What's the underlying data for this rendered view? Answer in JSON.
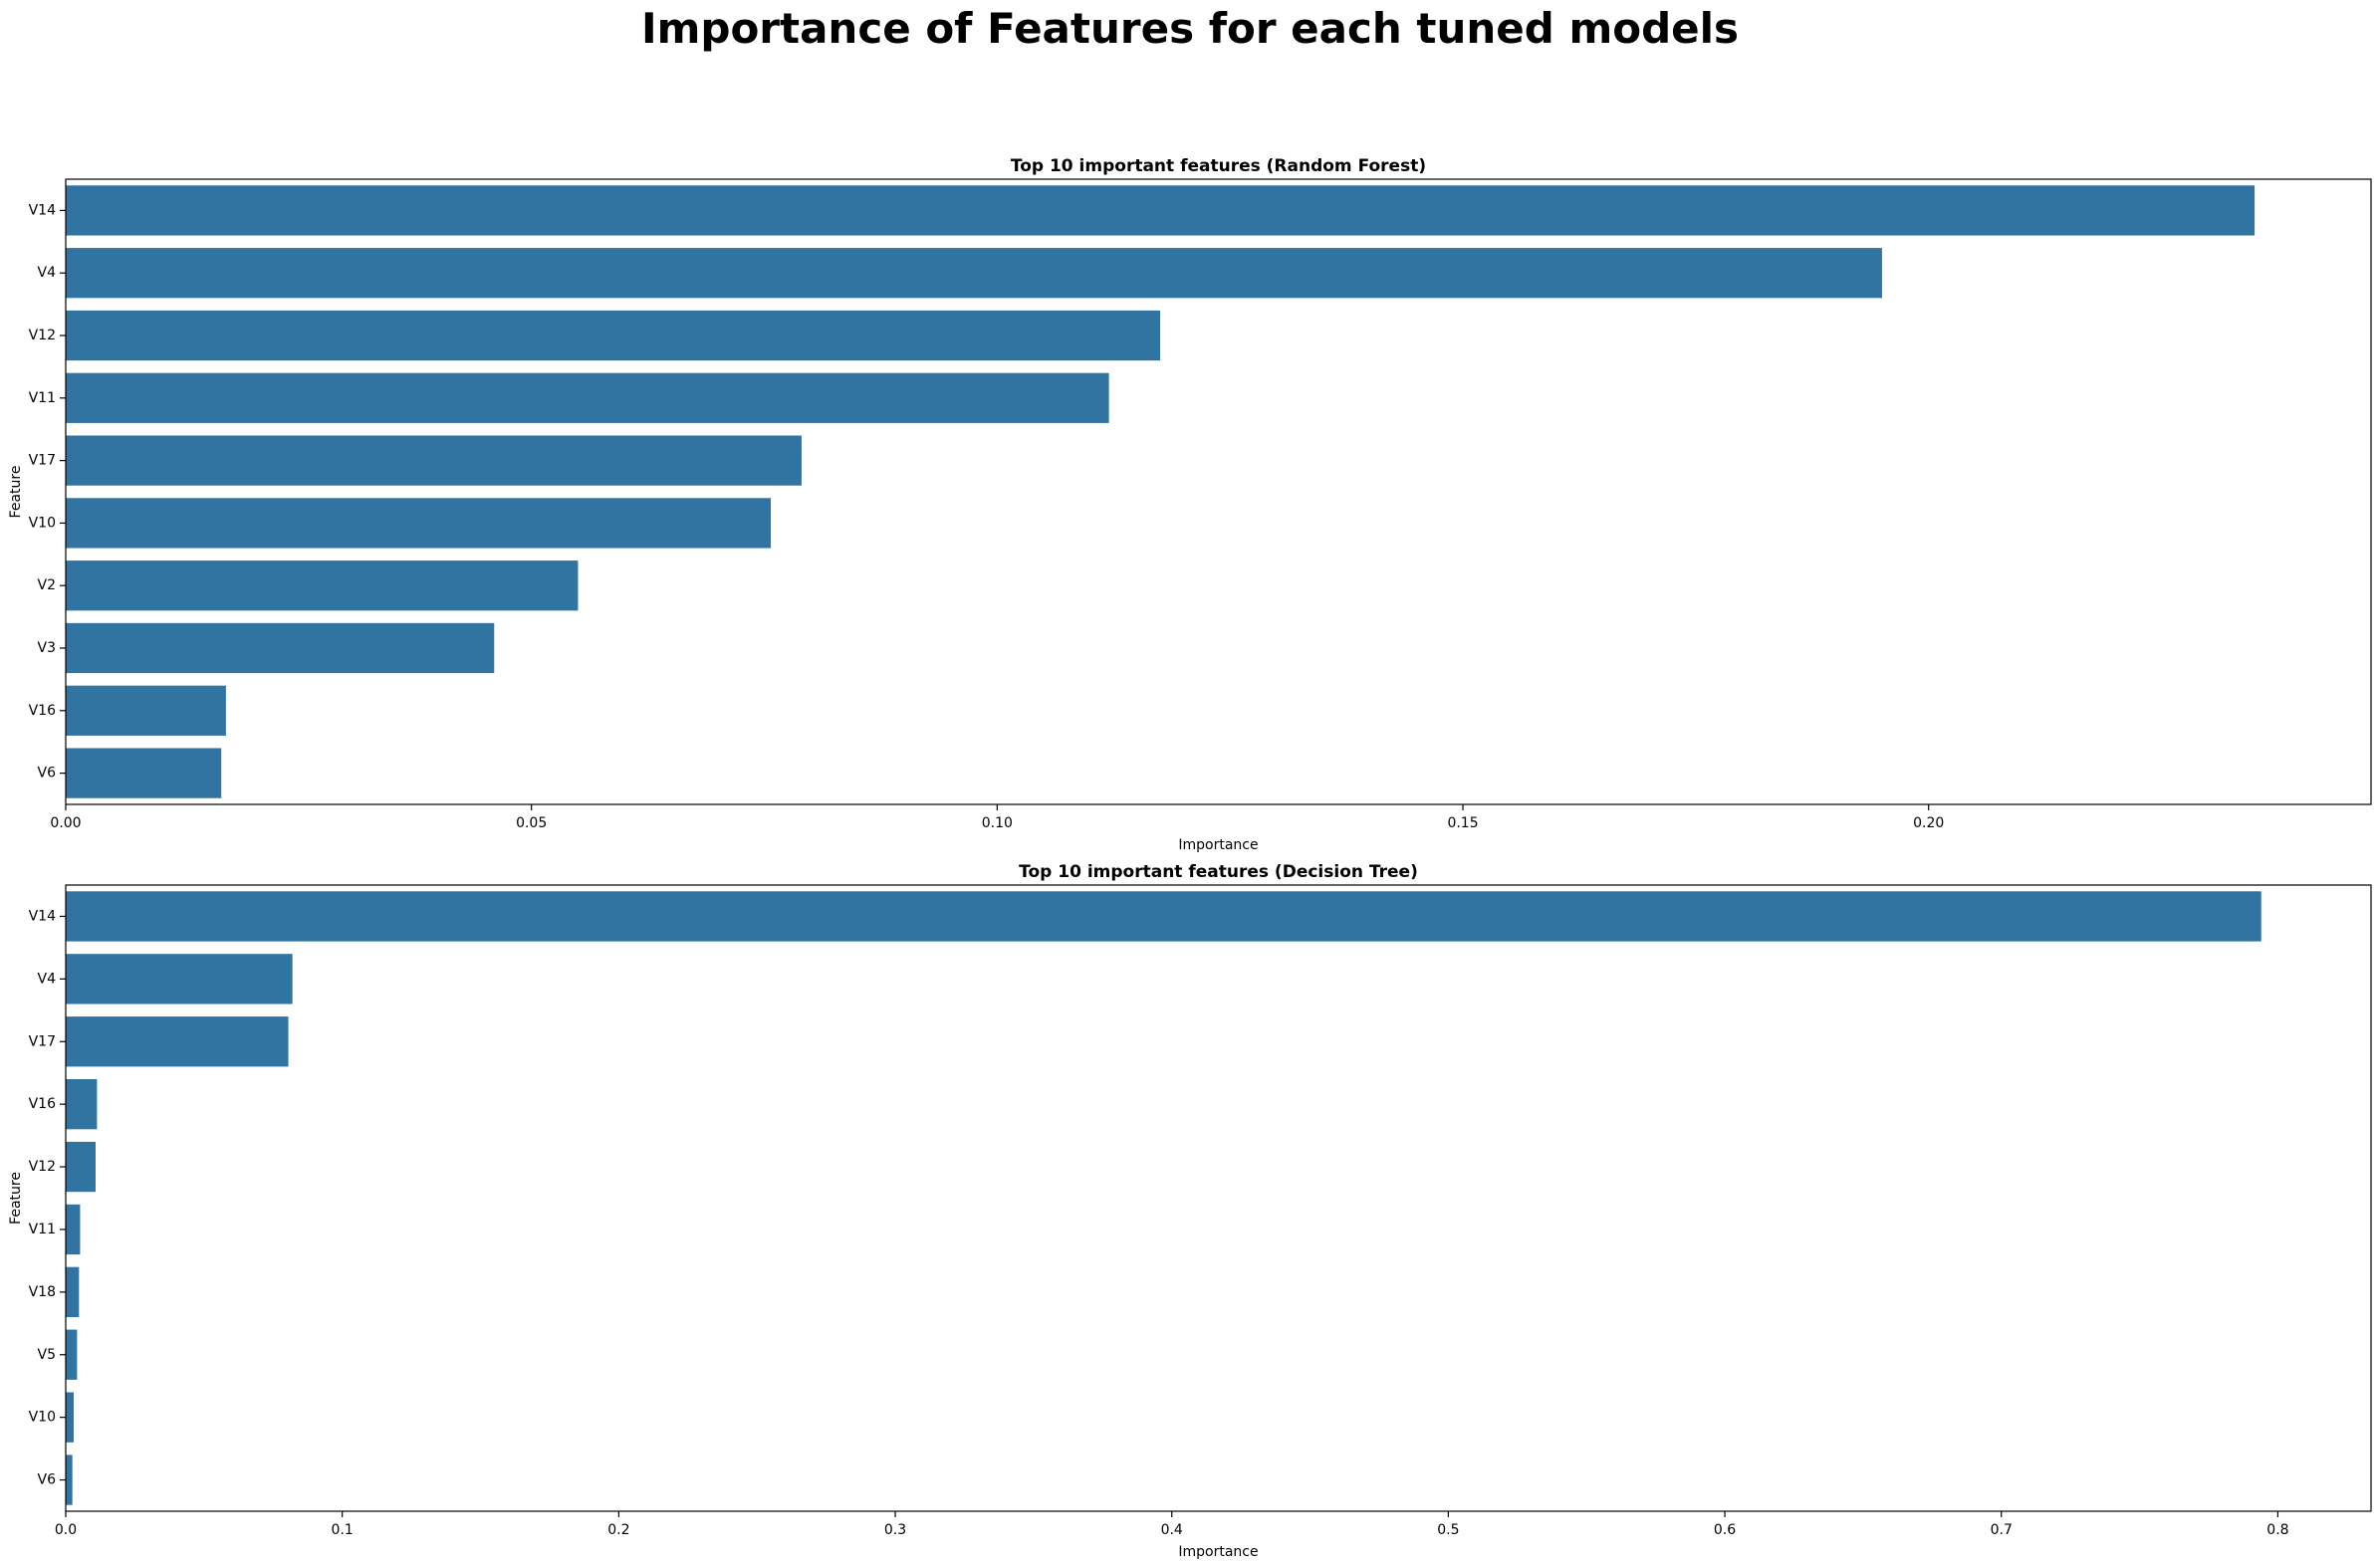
{
  "figure": {
    "suptitle": "Importance of Features for each tuned models"
  },
  "chart_data": [
    {
      "type": "bar",
      "orientation": "horizontal",
      "title": "Top 10 important features (Random Forest)",
      "xlabel": "Importance",
      "ylabel": "Feature",
      "categories": [
        "V14",
        "V4",
        "V12",
        "V11",
        "V17",
        "V10",
        "V2",
        "V3",
        "V16",
        "V6"
      ],
      "values": [
        0.235,
        0.195,
        0.1175,
        0.112,
        0.079,
        0.0757,
        0.055,
        0.046,
        0.0172,
        0.0167
      ],
      "xlim": [
        0,
        0.2475
      ],
      "xticks": [
        0.0,
        0.05,
        0.1,
        0.15,
        0.2
      ],
      "xtick_labels": [
        "0.00",
        "0.05",
        "0.10",
        "0.15",
        "0.20"
      ],
      "bar_color": "#3274a1",
      "grid": false
    },
    {
      "type": "bar",
      "orientation": "horizontal",
      "title": "Top 10 important features (Decision Tree)",
      "xlabel": "Importance",
      "ylabel": "Feature",
      "categories": [
        "V14",
        "V4",
        "V17",
        "V16",
        "V12",
        "V11",
        "V18",
        "V5",
        "V10",
        "V6"
      ],
      "values": [
        0.794,
        0.082,
        0.0805,
        0.0113,
        0.0108,
        0.0052,
        0.0048,
        0.0041,
        0.0029,
        0.0024
      ],
      "xlim": [
        0,
        0.8337
      ],
      "xticks": [
        0.0,
        0.1,
        0.2,
        0.3,
        0.4,
        0.5,
        0.6,
        0.7,
        0.8
      ],
      "xtick_labels": [
        "0.0",
        "0.1",
        "0.2",
        "0.3",
        "0.4",
        "0.5",
        "0.6",
        "0.7",
        "0.8"
      ],
      "bar_color": "#3274a1",
      "grid": false
    }
  ]
}
